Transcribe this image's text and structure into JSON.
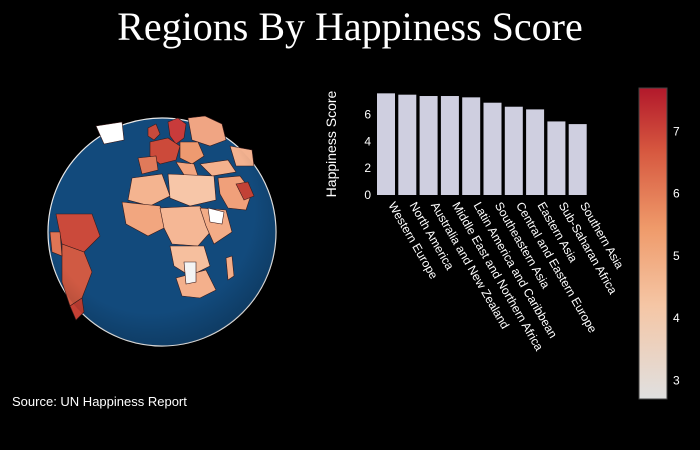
{
  "title": "Regions By Happiness Score",
  "source": "Source: UN Happiness Report",
  "colors": {
    "background": "#000000",
    "ocean": "#124a7c",
    "bar": "#cfcfe0",
    "scale_low": "#e2e2e2",
    "scale_mid": "#f2a57f",
    "scale_high": "#b2182b"
  },
  "globe": {
    "projection": "orthographic",
    "view": "Europe and Africa",
    "country_fill": "happiness score colorscale"
  },
  "chart_data": {
    "type": "bar",
    "categories": [
      "Western Europe",
      "North America",
      "Australia and New Zealand",
      "Middle East and Northern Africa",
      "Latin America and Caribbean",
      "Southeastern Asia",
      "Central and Eastern Europe",
      "Eastern Asia",
      "Sub-Saharan Africa",
      "Southern Asia"
    ],
    "values": [
      7.6,
      7.5,
      7.4,
      7.4,
      7.3,
      6.9,
      6.6,
      6.4,
      5.5,
      5.3
    ],
    "ylabel": "Happiness Score",
    "ylim": [
      0,
      7.7
    ],
    "yticks": [
      "0",
      "2",
      "4",
      "6"
    ],
    "colorbar": {
      "range": [
        2.7,
        7.7
      ],
      "ticks": [
        "3",
        "4",
        "5",
        "6",
        "7"
      ]
    }
  }
}
